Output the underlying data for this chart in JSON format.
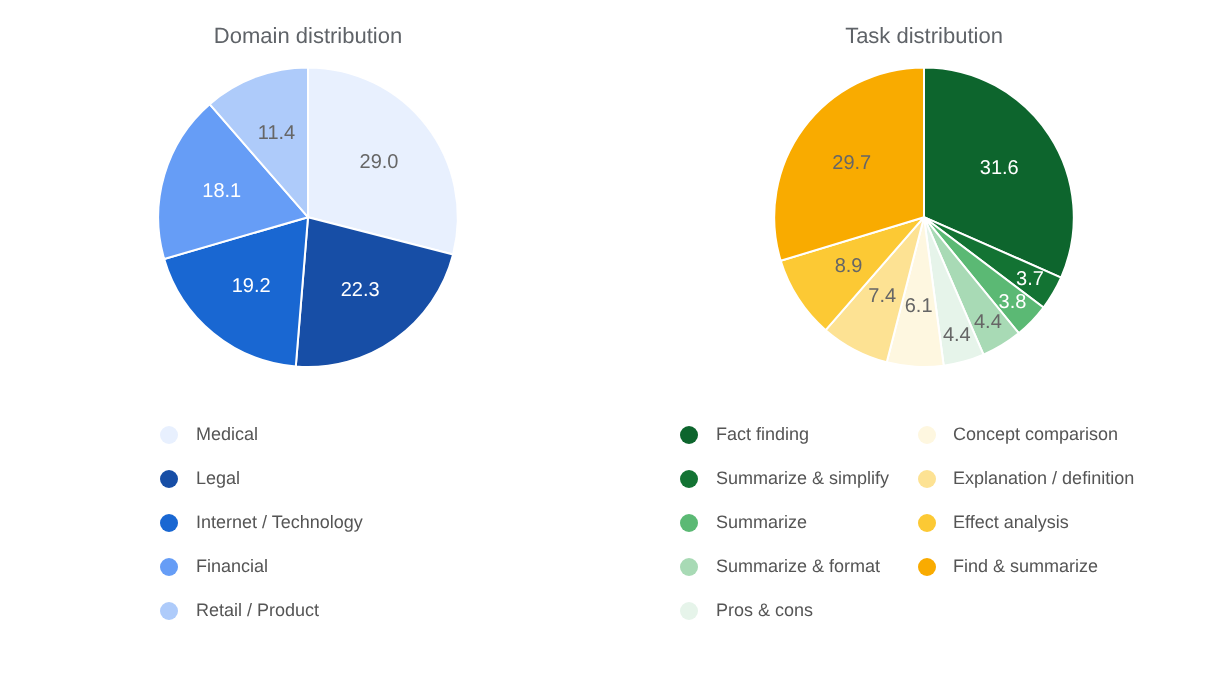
{
  "chart_data": [
    {
      "type": "pie",
      "title": "Domain distribution",
      "categories": [
        "Medical",
        "Legal",
        "Internet / Technology",
        "Financial",
        "Retail / Product"
      ],
      "values": [
        29.0,
        22.3,
        19.2,
        18.1,
        11.4
      ],
      "value_labels": [
        "29.0",
        "22.3",
        "19.2",
        "18.1",
        "11.4"
      ],
      "colors": [
        "#e8f0fe",
        "#174ea6",
        "#1967d2",
        "#669df6",
        "#aecbfa"
      ],
      "legend": "bottom"
    },
    {
      "type": "pie",
      "title": "Task distribution",
      "categories": [
        "Fact finding",
        "Summarize & simplify",
        "Summarize",
        "Summarize & format",
        "Pros & cons",
        "Concept comparison",
        "Explanation / definition",
        "Effect analysis",
        "Find & summarize"
      ],
      "values": [
        31.6,
        3.7,
        3.8,
        4.4,
        4.4,
        6.1,
        7.4,
        8.9,
        29.7
      ],
      "value_labels": [
        "31.6",
        "3.7",
        "3.8",
        "4.4",
        "4.4",
        "6.1",
        "7.4",
        "8.9",
        "29.7"
      ],
      "colors": [
        "#0d652d",
        "#137333",
        "#5bb974",
        "#a8dab5",
        "#e6f4ea",
        "#fef7e0",
        "#fde293",
        "#fcc934",
        "#f9ab00"
      ],
      "legend": "bottom"
    }
  ]
}
